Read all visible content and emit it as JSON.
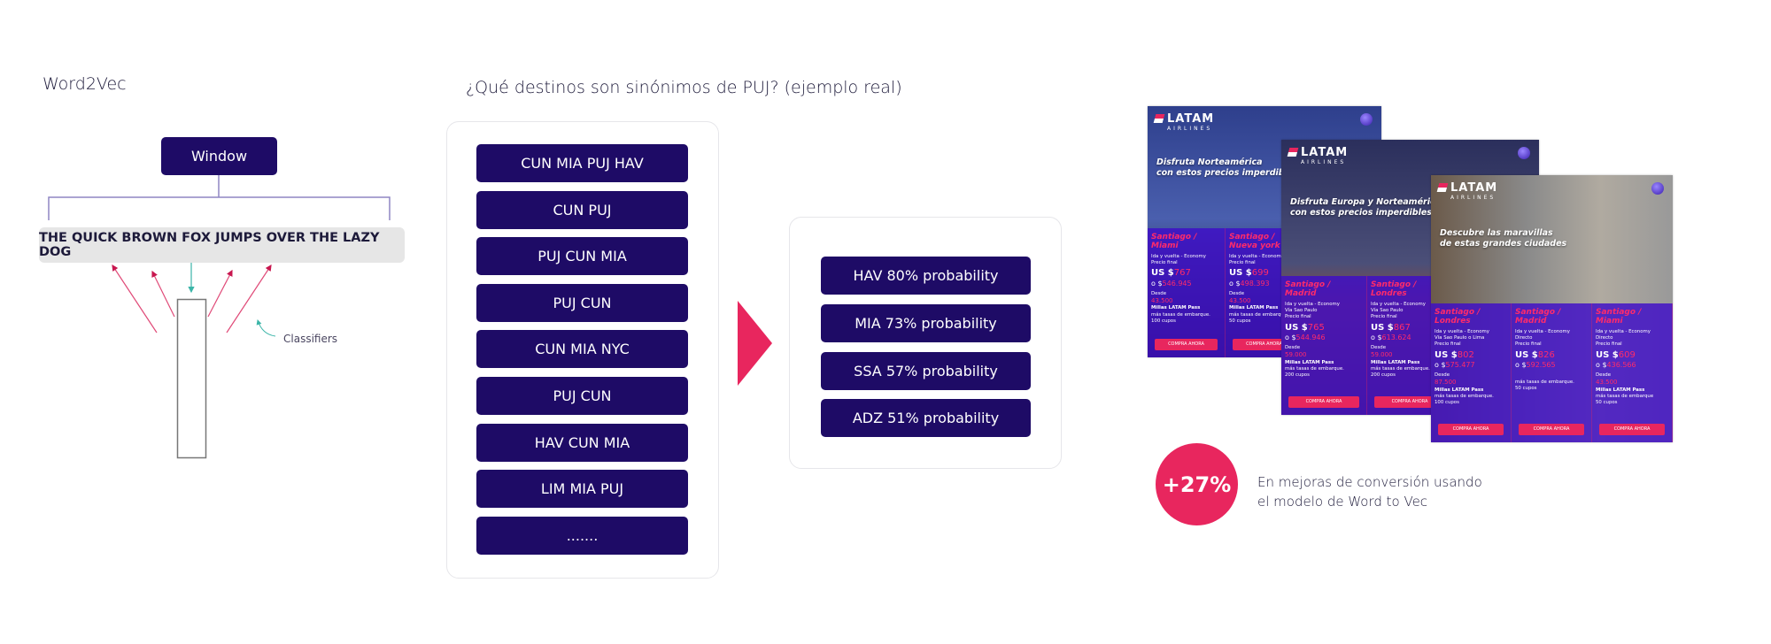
{
  "left": {
    "title": "Word2Vec",
    "window_label": "Window",
    "sentence": "THE QUICK BROWN FOX JUMPS OVER THE LAZY DOG",
    "classifiers_label": "Classifiers"
  },
  "middle": {
    "title": "¿Qué destinos son sinónimos de PUJ? (ejemplo real)",
    "sequences": [
      "CUN MIA PUJ HAV",
      "CUN PUJ",
      "PUJ CUN MIA",
      "PUJ CUN",
      "CUN MIA NYC",
      "PUJ CUN",
      "HAV CUN MIA",
      "LIM MIA PUJ",
      "......."
    ],
    "results": [
      "HAV 80% probability",
      "MIA 73% probability",
      "SSA 57% probability",
      "ADZ 51% probability"
    ]
  },
  "colors": {
    "navy": "#1e0b66",
    "accent": "#e8265e",
    "ad_panel": "#3e0cc8"
  },
  "ads": [
    {
      "logo": "LATAM",
      "logo_sub": "AIRLINES",
      "title": [
        "Disfruta Norteamérica",
        "con estos precios imperdibles."
      ],
      "columns": [
        {
          "route": [
            "Santiago /",
            "Miami"
          ],
          "details": [
            "Ida y vuelta - Economy",
            "Precio final"
          ],
          "usd": "767",
          "clp": "546.945",
          "desde": "43.500",
          "note": [
            "más tasas de embarque.",
            "100 cupos"
          ],
          "button": "COMPRA AHORA"
        },
        {
          "route": [
            "Santiago /",
            "Nueva york"
          ],
          "details": [
            "Ida y vuelta - Economy",
            "Precio final"
          ],
          "usd": "699",
          "clp": "498.393",
          "desde": "43.500",
          "note": [
            "más tasas de embarque.",
            "50 cupos"
          ],
          "button": "COMPRA AHORA"
        }
      ]
    },
    {
      "logo": "LATAM",
      "logo_sub": "AIRLINES",
      "title": [
        "Disfruta Europa y Norteamérica",
        "con estos precios imperdibles."
      ],
      "columns": [
        {
          "route": [
            "Santiago /",
            "Madrid"
          ],
          "details": [
            "Ida y vuelta - Economy",
            "Vía Sao Paulo",
            "Precio final"
          ],
          "usd": "765",
          "clp": "544.946",
          "desde": "59.000",
          "note": [
            "más tasas de embarque.",
            "200 cupos"
          ],
          "button": "COMPRA AHORA"
        },
        {
          "route": [
            "Santiago /",
            "Londres"
          ],
          "details": [
            "Ida y vuelta - Economy",
            "Vía Sao Paulo",
            "Precio final"
          ],
          "usd": "867",
          "clp": "613.624",
          "desde": "59.000",
          "note": [
            "más tasas de embarque.",
            "200 cupos"
          ],
          "button": "COMPRA AHORA"
        }
      ]
    },
    {
      "logo": "LATAM",
      "logo_sub": "AIRLINES",
      "title": [
        "Descubre las maravillas",
        "de estas grandes ciudades"
      ],
      "columns": [
        {
          "route": [
            "Santiago /",
            "Londres"
          ],
          "details": [
            "Ida y vuelta - Economy",
            "Vía Sao Paulo o Lima",
            "Precio final"
          ],
          "usd": "802",
          "clp": "575.477",
          "desde": "87.500",
          "note": [
            "más tasas de embarque.",
            "100 cupos"
          ],
          "button": "COMPRA AHORA"
        },
        {
          "route": [
            "Santiago /",
            "Madrid"
          ],
          "details": [
            "Ida y vuelta - Economy",
            "Directo",
            "Precio final"
          ],
          "usd": "826",
          "clp": "592.565",
          "desde": null,
          "note": [
            "más tasas de embarque.",
            "50 cupos"
          ],
          "button": "COMPRA AHORA"
        },
        {
          "route": [
            "Santiago /",
            "Miami"
          ],
          "details": [
            "Ida y vuelta - Economy",
            "Directo",
            "Precio final"
          ],
          "usd": "609",
          "clp": "436.566",
          "desde": "43.500",
          "note": [
            "más tasas de embarque",
            "50 cupos"
          ],
          "button": "COMPRA AHORA"
        }
      ]
    }
  ],
  "ad_labels": {
    "usd_prefix": "US $",
    "clp_prefix": "o $",
    "desde": "Desde",
    "millas": "Millas LATAM Pass"
  },
  "stat": {
    "value": "+27%",
    "text": [
      "En mejoras de conversión usando",
      "el modelo de Word to Vec"
    ]
  }
}
